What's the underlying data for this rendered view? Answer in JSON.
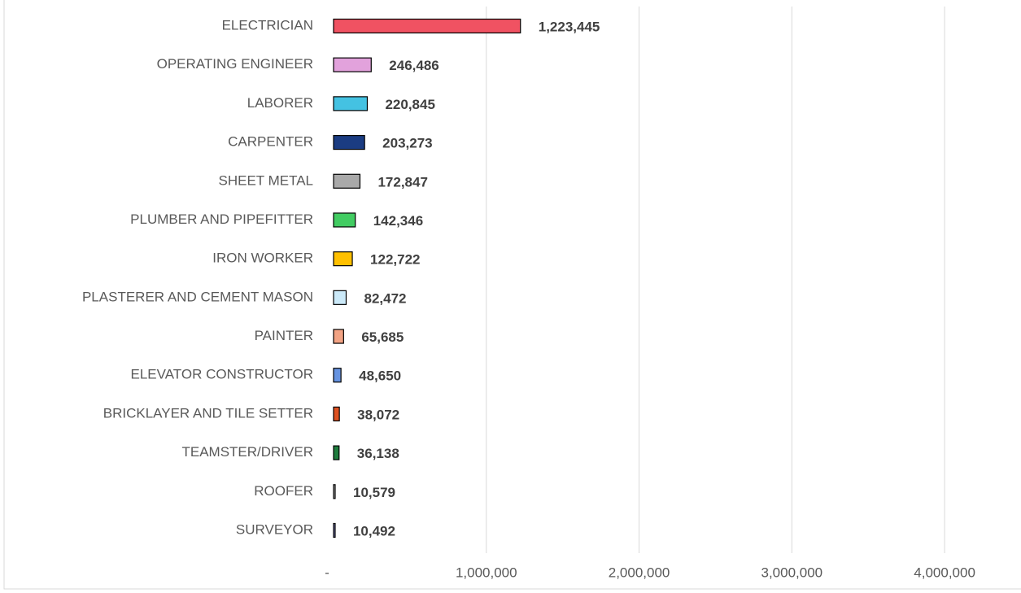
{
  "chart_data": {
    "type": "barh",
    "categories": [
      "ELECTRICIAN",
      "OPERATING ENGINEER",
      "LABORER",
      "CARPENTER",
      "SHEET METAL",
      "PLUMBER AND PIPEFITTER",
      "IRON WORKER",
      "PLASTERER AND CEMENT MASON",
      "PAINTER",
      "ELEVATOR CONSTRUCTOR",
      "BRICKLAYER AND TILE SETTER",
      "TEAMSTER/DRIVER",
      "ROOFER",
      "SURVEYOR"
    ],
    "values": [
      1223445,
      246486,
      220845,
      203273,
      172847,
      142346,
      122722,
      82472,
      65685,
      48650,
      38072,
      36138,
      10579,
      10492
    ],
    "value_labels": [
      "1,223,445",
      "246,486",
      "220,845",
      "203,273",
      "172,847",
      "142,346",
      "122,722",
      "82,472",
      "65,685",
      "48,650",
      "38,072",
      "36,138",
      "10,579",
      "10,492"
    ],
    "colors": [
      "#f05262",
      "#e2a2dc",
      "#44c2e2",
      "#1b3c82",
      "#a9a9a9",
      "#42cc62",
      "#ffc000",
      "#cbe9f8",
      "#f2a384",
      "#6693e0",
      "#de5222",
      "#1f7d3e",
      "#bbbbbb",
      "#7f80c0"
    ],
    "xlim": [
      0,
      4500000
    ],
    "xticks": [
      {
        "value": 0,
        "label": "-"
      },
      {
        "value": 1000000,
        "label": "1,000,000"
      },
      {
        "value": 2000000,
        "label": "2,000,000"
      },
      {
        "value": 3000000,
        "label": "3,000,000"
      },
      {
        "value": 4000000,
        "label": "4,000,000"
      }
    ],
    "grid": true
  }
}
